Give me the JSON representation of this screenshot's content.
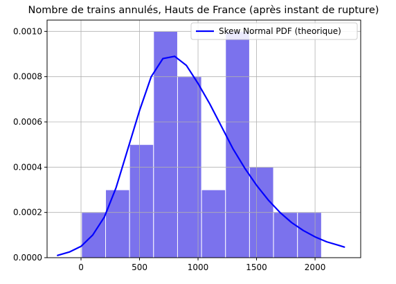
{
  "chart_data": {
    "type": "bar",
    "title": "Nombre de trains annulés, Hauts de France (après instant de rupture)",
    "xlabel": "",
    "ylabel": "",
    "xlim": [
      -290,
      2390
    ],
    "ylim": [
      0,
      0.00105
    ],
    "grid": true,
    "legend_placement": "top-right",
    "x_ticks": [
      0,
      500,
      1000,
      1500,
      2000
    ],
    "x_tick_labels": [
      "0",
      "500",
      "1000",
      "1500",
      "2000"
    ],
    "y_ticks": [
      0,
      0.0002,
      0.0004,
      0.0006,
      0.0008,
      0.001
    ],
    "y_tick_labels": [
      "0.0000",
      "0.0002",
      "0.0004",
      "0.0006",
      "0.0008",
      "0.0010"
    ],
    "histogram": {
      "bin_edges": [
        5,
        210,
        415,
        620,
        825,
        1030,
        1235,
        1440,
        1645,
        1850,
        2055
      ],
      "densities": [
        0.0002,
        0.0003,
        0.0005,
        0.001,
        0.0008,
        0.0003,
        0.001,
        0.0004,
        0.0002,
        0.0002
      ],
      "color": "#7b72ed",
      "edge_color": "#ffffff"
    },
    "series": [
      {
        "name": "Skew Normal PDF (theorique)",
        "type": "line",
        "color": "#0000ff",
        "x": [
          -200,
          -100,
          0,
          100,
          200,
          300,
          400,
          500,
          600,
          700,
          800,
          900,
          1000,
          1100,
          1200,
          1300,
          1400,
          1500,
          1600,
          1700,
          1800,
          1900,
          2000,
          2100,
          2200,
          2250
        ],
        "y": [
          1e-05,
          2.5e-05,
          5e-05,
          0.0001,
          0.00018,
          0.00031,
          0.00048,
          0.00065,
          0.0008,
          0.00088,
          0.00089,
          0.00085,
          0.00077,
          0.00068,
          0.00058,
          0.00048,
          0.000395,
          0.00032,
          0.000255,
          0.0002,
          0.000155,
          0.00012,
          9.2e-05,
          7e-05,
          5.5e-05,
          4.7e-05
        ]
      }
    ]
  }
}
